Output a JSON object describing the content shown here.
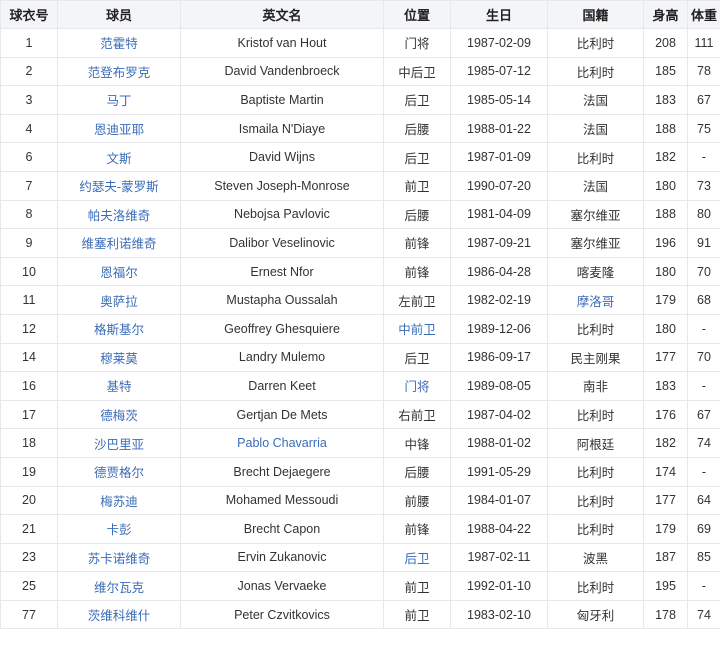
{
  "colors": {
    "link": "#3b6cb7",
    "header_bg": "#f4f5f7",
    "header_text": "#222222",
    "cell_text": "#333333",
    "border": "#e6e8eb"
  },
  "table": {
    "headers": [
      "球衣号",
      "球员",
      "英文名",
      "位置",
      "生日",
      "国籍",
      "身高",
      "体重"
    ],
    "rows": [
      {
        "cells": [
          "1",
          "范霍特",
          "Kristof van Hout",
          "门将",
          "1987-02-09",
          "比利时",
          "208",
          "111"
        ],
        "link_cols": [
          1
        ]
      },
      {
        "cells": [
          "2",
          "范登布罗克",
          "David Vandenbroeck",
          "中后卫",
          "1985-07-12",
          "比利时",
          "185",
          "78"
        ],
        "link_cols": [
          1
        ]
      },
      {
        "cells": [
          "3",
          "马丁",
          "Baptiste Martin",
          "后卫",
          "1985-05-14",
          "法国",
          "183",
          "67"
        ],
        "link_cols": [
          1
        ]
      },
      {
        "cells": [
          "4",
          "恩迪亚耶",
          "Ismaila N'Diaye",
          "后腰",
          "1988-01-22",
          "法国",
          "188",
          "75"
        ],
        "link_cols": [
          1
        ]
      },
      {
        "cells": [
          "6",
          "文斯",
          "David Wijns",
          "后卫",
          "1987-01-09",
          "比利时",
          "182",
          "-"
        ],
        "link_cols": [
          1
        ]
      },
      {
        "cells": [
          "7",
          "约瑟夫-蒙罗斯",
          "Steven Joseph-Monrose",
          "前卫",
          "1990-07-20",
          "法国",
          "180",
          "73"
        ],
        "link_cols": [
          1
        ]
      },
      {
        "cells": [
          "8",
          "帕夫洛维奇",
          "Nebojsa Pavlovic",
          "后腰",
          "1981-04-09",
          "塞尔维亚",
          "188",
          "80"
        ],
        "link_cols": [
          1
        ]
      },
      {
        "cells": [
          "9",
          "维塞利诺维奇",
          "Dalibor Veselinovic",
          "前锋",
          "1987-09-21",
          "塞尔维亚",
          "196",
          "91"
        ],
        "link_cols": [
          1
        ]
      },
      {
        "cells": [
          "10",
          "恩福尔",
          "Ernest Nfor",
          "前锋",
          "1986-04-28",
          "喀麦隆",
          "180",
          "70"
        ],
        "link_cols": [
          1
        ]
      },
      {
        "cells": [
          "11",
          "奥萨拉",
          "Mustapha Oussalah",
          "左前卫",
          "1982-02-19",
          "摩洛哥",
          "179",
          "68"
        ],
        "link_cols": [
          1,
          5
        ]
      },
      {
        "cells": [
          "12",
          "格斯基尔",
          "Geoffrey Ghesquiere",
          "中前卫",
          "1989-12-06",
          "比利时",
          "180",
          "-"
        ],
        "link_cols": [
          1,
          3
        ]
      },
      {
        "cells": [
          "14",
          "穆莱莫",
          "Landry Mulemo",
          "后卫",
          "1986-09-17",
          "民主刚果",
          "177",
          "70"
        ],
        "link_cols": [
          1
        ]
      },
      {
        "cells": [
          "16",
          "基特",
          "Darren Keet",
          "门将",
          "1989-08-05",
          "南非",
          "183",
          "-"
        ],
        "link_cols": [
          1,
          3
        ]
      },
      {
        "cells": [
          "17",
          "德梅茨",
          "Gertjan De Mets",
          "右前卫",
          "1987-04-02",
          "比利时",
          "176",
          "67"
        ],
        "link_cols": [
          1
        ]
      },
      {
        "cells": [
          "18",
          "沙巴里亚",
          "Pablo Chavarria",
          "中锋",
          "1988-01-02",
          "阿根廷",
          "182",
          "74"
        ],
        "link_cols": [
          1,
          2
        ]
      },
      {
        "cells": [
          "19",
          "德贾格尔",
          "Brecht Dejaegere",
          "后腰",
          "1991-05-29",
          "比利时",
          "174",
          "-"
        ],
        "link_cols": [
          1
        ]
      },
      {
        "cells": [
          "20",
          "梅苏迪",
          "Mohamed Messoudi",
          "前腰",
          "1984-01-07",
          "比利时",
          "177",
          "64"
        ],
        "link_cols": [
          1
        ]
      },
      {
        "cells": [
          "21",
          "卡彭",
          "Brecht Capon",
          "前锋",
          "1988-04-22",
          "比利时",
          "179",
          "69"
        ],
        "link_cols": [
          1
        ]
      },
      {
        "cells": [
          "23",
          "苏卡诺维奇",
          "Ervin Zukanovic",
          "后卫",
          "1987-02-11",
          "波黑",
          "187",
          "85"
        ],
        "link_cols": [
          1,
          3
        ]
      },
      {
        "cells": [
          "25",
          "维尔瓦克",
          "Jonas Vervaeke",
          "前卫",
          "1992-01-10",
          "比利时",
          "195",
          "-"
        ],
        "link_cols": [
          1
        ]
      },
      {
        "cells": [
          "77",
          "茨维科维什",
          "Peter Czvitkovics",
          "前卫",
          "1983-02-10",
          "匈牙利",
          "178",
          "74"
        ],
        "link_cols": [
          1
        ]
      }
    ]
  }
}
